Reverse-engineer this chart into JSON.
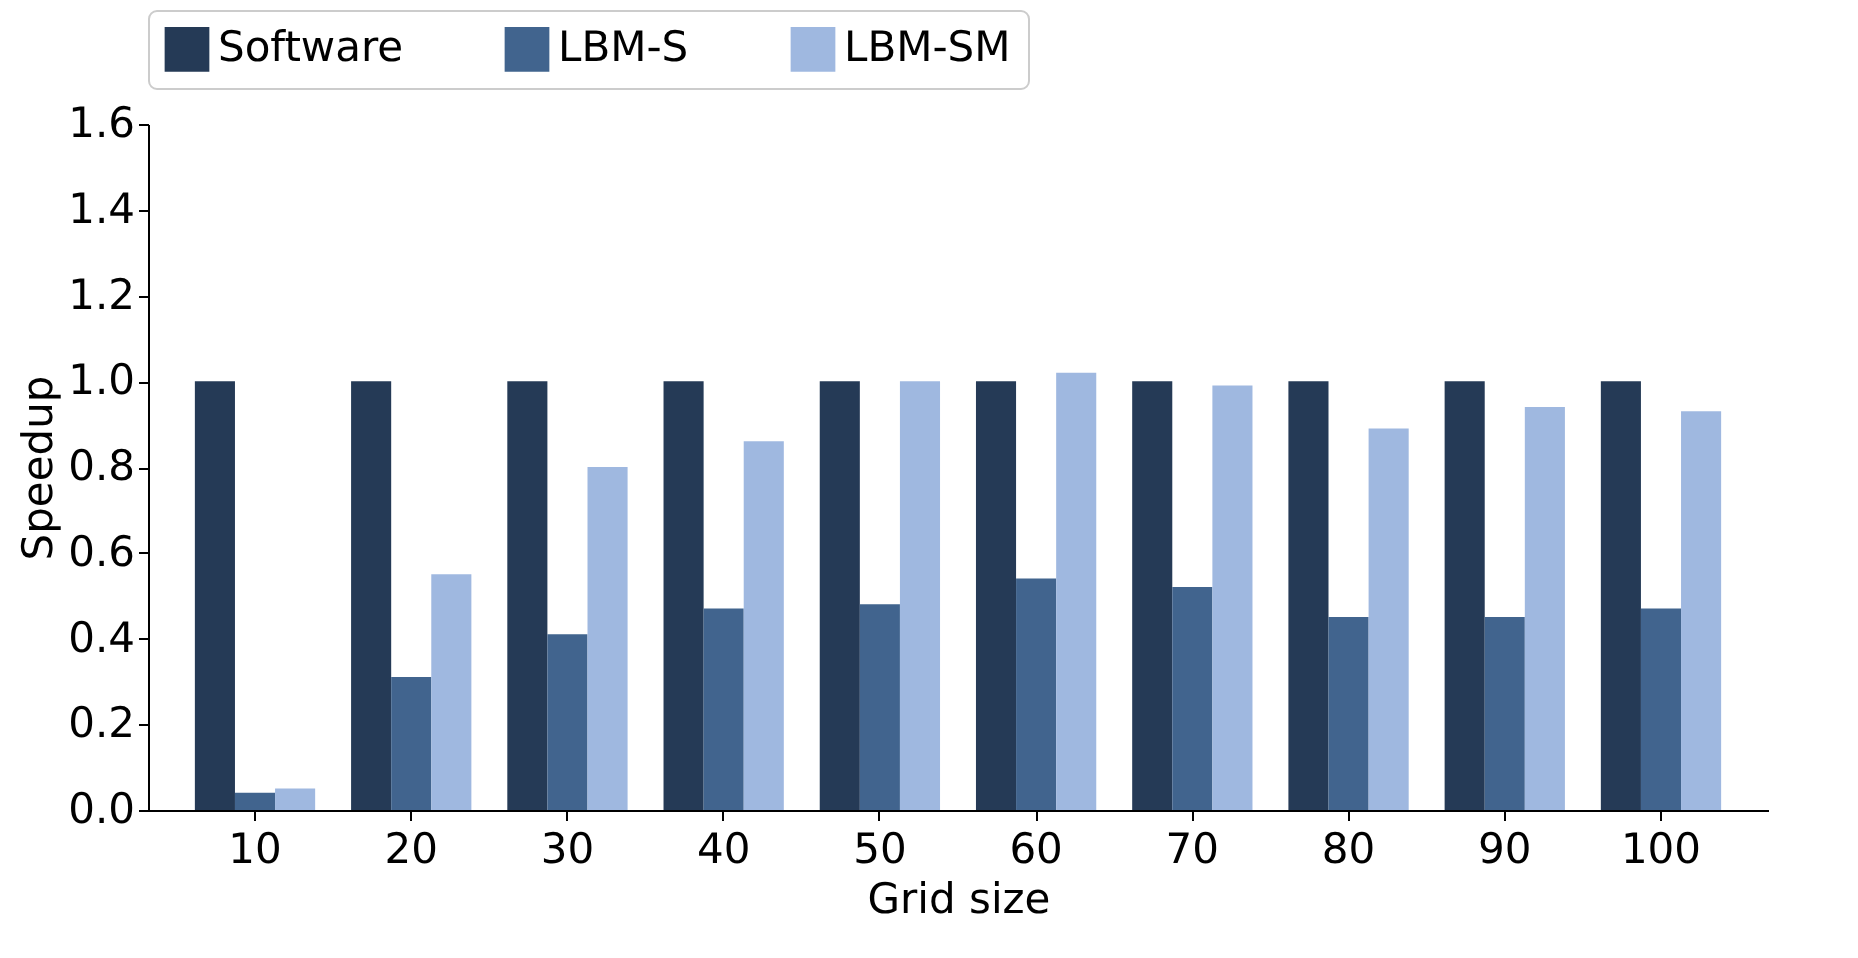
{
  "chart_data": {
    "type": "bar",
    "xlabel": "Grid size",
    "ylabel": "Speedup",
    "categories": [
      "10",
      "20",
      "30",
      "40",
      "50",
      "60",
      "70",
      "80",
      "90",
      "100"
    ],
    "series": [
      {
        "name": "Software",
        "color": "#253a56",
        "values": [
          1.0,
          1.0,
          1.0,
          1.0,
          1.0,
          1.0,
          1.0,
          1.0,
          1.0,
          1.0
        ]
      },
      {
        "name": "LBM-S",
        "color": "#41648e",
        "values": [
          0.04,
          0.31,
          0.41,
          0.47,
          0.48,
          0.54,
          0.52,
          0.45,
          0.45,
          0.47
        ]
      },
      {
        "name": "LBM-SM",
        "color": "#9fb8e0",
        "values": [
          0.05,
          0.55,
          0.8,
          0.86,
          1.0,
          1.02,
          0.99,
          0.89,
          0.94,
          0.93
        ]
      }
    ],
    "ylim": [
      0,
      1.6
    ],
    "yticks": [
      {
        "value": 0,
        "label": "0.0"
      },
      {
        "value": 0.2,
        "label": "0.2"
      },
      {
        "value": 0.4,
        "label": "0.4"
      },
      {
        "value": 0.6,
        "label": "0.6"
      },
      {
        "value": 0.8,
        "label": "0.8"
      },
      {
        "value": 1,
        "label": "1.0"
      },
      {
        "value": 1.2,
        "label": "1.2"
      },
      {
        "value": 1.4,
        "label": "1.4"
      },
      {
        "value": 1.6,
        "label": "1.6"
      }
    ],
    "legend": "top",
    "grid": false
  }
}
